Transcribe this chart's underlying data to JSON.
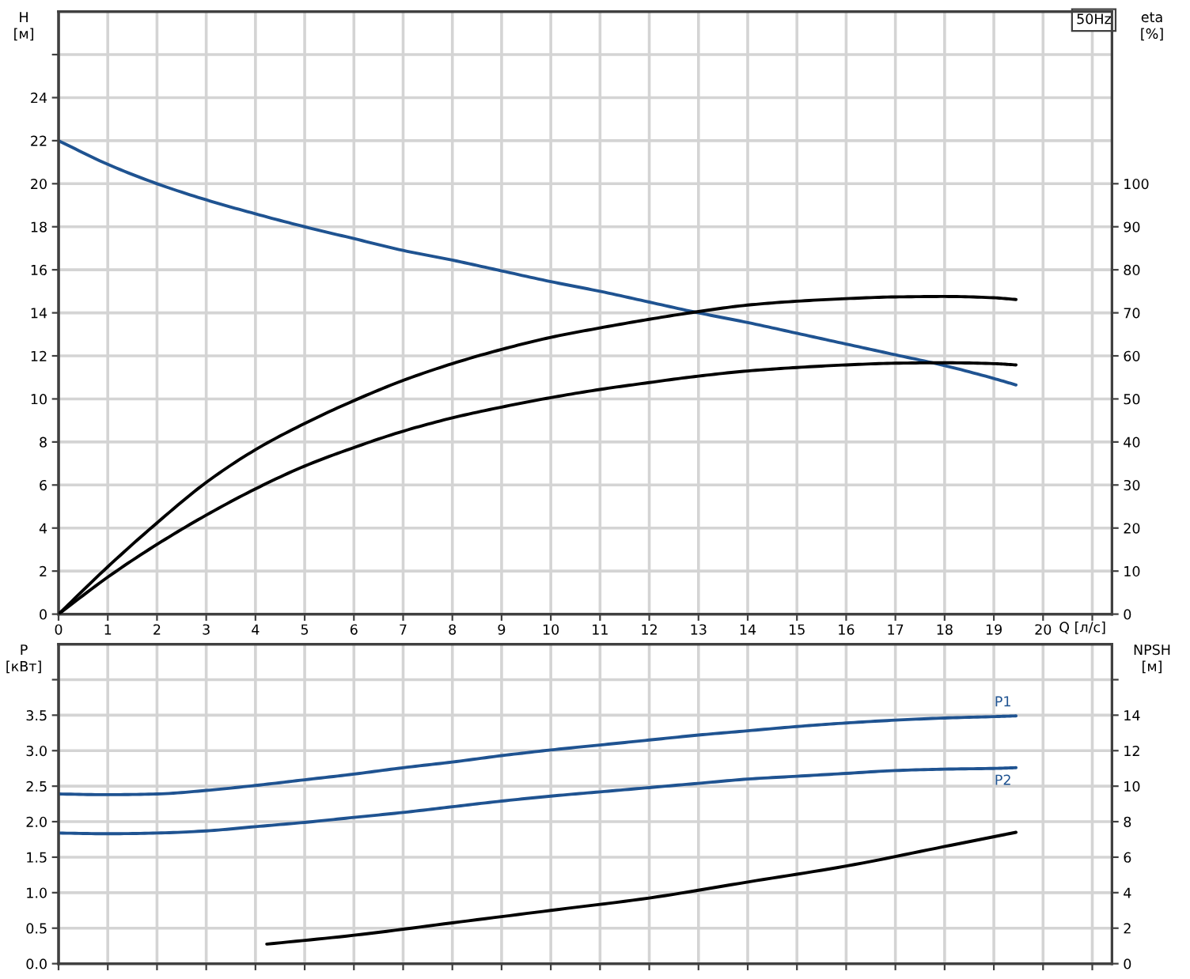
{
  "chart_data": [
    {
      "type": "line",
      "xlabel": "Q [л/с]",
      "ylabel": "H [м]",
      "y2label": "eta [%]",
      "annotations": [
        "50Hz"
      ],
      "xlim": [
        0,
        21.4
      ],
      "xticks": [
        0,
        1,
        2,
        3,
        4,
        5,
        6,
        7,
        8,
        9,
        10,
        11,
        12,
        13,
        14,
        15,
        16,
        17,
        18,
        19,
        20,
        {
          "value": 21,
          "label": null
        }
      ],
      "ylim": [
        0,
        28
      ],
      "yticks": [
        0,
        2,
        4,
        6,
        8,
        10,
        12,
        14,
        16,
        18,
        20,
        22,
        24,
        {
          "value": 26,
          "label": null
        }
      ],
      "y2lim": [
        0,
        140
      ],
      "y2ticks": [
        0,
        10,
        20,
        30,
        40,
        50,
        60,
        70,
        80,
        90,
        100
      ],
      "grid": true,
      "line_style": "solid",
      "series": [
        {
          "color": "#1f5391",
          "x": [
            0,
            1,
            2,
            3,
            4,
            5,
            6,
            7,
            8,
            9,
            10,
            11,
            12,
            13,
            14,
            15,
            16,
            17,
            18,
            19,
            19.45
          ],
          "values": [
            22,
            20.9,
            20.0,
            19.25,
            18.6,
            18.0,
            17.45,
            16.9,
            16.45,
            15.95,
            15.45,
            15.0,
            14.5,
            14.0,
            13.55,
            13.05,
            12.55,
            12.05,
            11.55,
            10.95,
            10.65
          ]
        },
        {
          "color": "#000000",
          "axis": "y2",
          "x": [
            0,
            1,
            2,
            3,
            4,
            5,
            6,
            7,
            8,
            9,
            10,
            11,
            12,
            13,
            14,
            15,
            16,
            17,
            18,
            19,
            19.45
          ],
          "values": [
            0,
            11.0,
            21.2,
            30.6,
            38.2,
            44.3,
            49.6,
            54.3,
            58.2,
            61.5,
            64.3,
            66.5,
            68.5,
            70.3,
            71.8,
            72.7,
            73.3,
            73.7,
            73.8,
            73.5,
            73.1
          ]
        },
        {
          "color": "#000000",
          "axis": "y2",
          "x": [
            0,
            1,
            2,
            3,
            4,
            5,
            6,
            7,
            8,
            9,
            10,
            11,
            12,
            13,
            14,
            15,
            16,
            17,
            18,
            19,
            19.45
          ],
          "values": [
            0,
            8.6,
            16.2,
            23.0,
            29.1,
            34.4,
            38.7,
            42.5,
            45.6,
            48.1,
            50.3,
            52.2,
            53.8,
            55.3,
            56.5,
            57.3,
            57.9,
            58.3,
            58.4,
            58.2,
            57.9
          ]
        }
      ]
    },
    {
      "type": "line",
      "ylabel": "P [кВт]",
      "y2label": "NPSH [м]",
      "tick_labels": "y",
      "xlim": [
        0,
        21.4
      ],
      "xticks": [
        0,
        1,
        2,
        3,
        4,
        5,
        6,
        7,
        8,
        9,
        10,
        11,
        12,
        13,
        14,
        15,
        16,
        17,
        18,
        19,
        20,
        {
          "value": 21,
          "label": null
        }
      ],
      "ylim": [
        0,
        4.5
      ],
      "yticks": [
        {
          "value": 0,
          "label": "0.0"
        },
        0.5,
        {
          "value": 1,
          "label": "1.0"
        },
        1.5,
        {
          "value": 2,
          "label": "2.0"
        },
        2.5,
        {
          "value": 3,
          "label": "3.0"
        },
        3.5,
        {
          "value": 4,
          "label": null
        }
      ],
      "y2lim": [
        0,
        18
      ],
      "y2ticks": [
        0,
        2,
        4,
        6,
        8,
        10,
        12,
        14,
        {
          "value": 16,
          "label": null
        }
      ],
      "grid": true,
      "line_style": "solid",
      "series": [
        {
          "name": "P1",
          "color": "#1f5391",
          "x": [
            0,
            1,
            2,
            3,
            4,
            5,
            6,
            7,
            8,
            9,
            10,
            11,
            12,
            13,
            14,
            15,
            16,
            17,
            18,
            19,
            19.45
          ],
          "values": [
            2.39,
            2.38,
            2.39,
            2.44,
            2.51,
            2.59,
            2.67,
            2.76,
            2.84,
            2.93,
            3.01,
            3.08,
            3.15,
            3.22,
            3.28,
            3.34,
            3.39,
            3.43,
            3.46,
            3.48,
            3.49
          ]
        },
        {
          "name": "P2",
          "color": "#1f5391",
          "x": [
            0,
            1,
            2,
            3,
            4,
            5,
            6,
            7,
            8,
            9,
            10,
            11,
            12,
            13,
            14,
            15,
            16,
            17,
            18,
            19,
            19.45
          ],
          "values": [
            1.84,
            1.83,
            1.84,
            1.87,
            1.93,
            1.99,
            2.06,
            2.13,
            2.21,
            2.29,
            2.36,
            2.42,
            2.48,
            2.54,
            2.6,
            2.64,
            2.68,
            2.72,
            2.74,
            2.75,
            2.76
          ]
        },
        {
          "color": "#000000",
          "axis": "y2",
          "x": [
            4.23,
            6,
            8,
            10,
            12,
            14,
            16,
            18,
            19.45
          ],
          "values": [
            1.1,
            1.6,
            2.3,
            3.0,
            3.7,
            4.6,
            5.5,
            6.6,
            7.4
          ]
        }
      ]
    }
  ]
}
